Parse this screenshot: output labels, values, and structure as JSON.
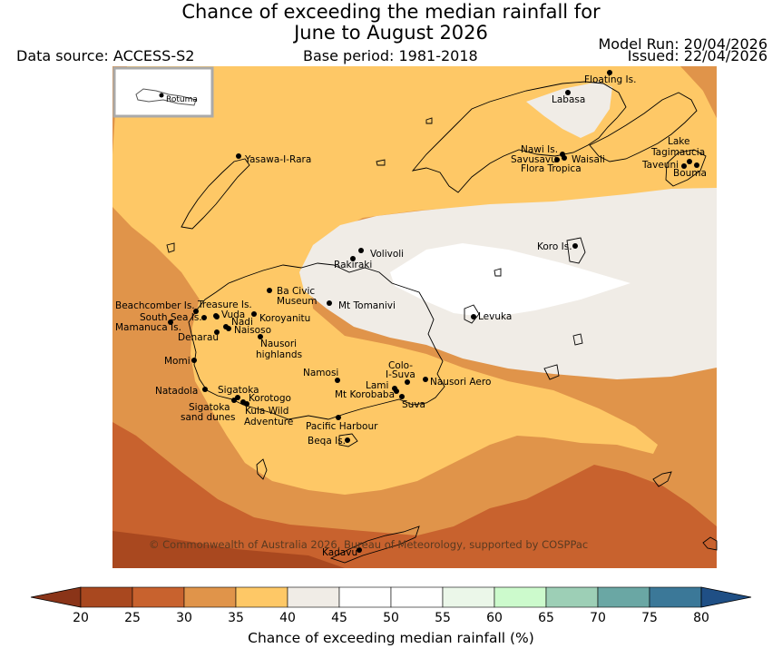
{
  "title": {
    "line1": "Chance of exceeding the median rainfall for",
    "line2": "June to August 2026"
  },
  "header": {
    "data_source": "Data source: ACCESS-S2",
    "base_period": "Base period: 1981-2018",
    "model_run": "Model Run: 20/04/2026",
    "issued": "Issued: 22/04/2026"
  },
  "inset": {
    "label": "Rotuma"
  },
  "places": [
    {
      "name": "Floating Is."
    },
    {
      "name": "Labasa"
    },
    {
      "name": "Yasawa-I-Rara"
    },
    {
      "name": "Nawi Is."
    },
    {
      "name": "Savusavu"
    },
    {
      "name": "Waisali"
    },
    {
      "name": "Flora Tropica"
    },
    {
      "name": "Lake"
    },
    {
      "name": "Tagimaucia"
    },
    {
      "name": "Taveuni"
    },
    {
      "name": "Bouma"
    },
    {
      "name": "Koro Is."
    },
    {
      "name": "Volivoli"
    },
    {
      "name": "Rakiraki"
    },
    {
      "name": "Ba Civic"
    },
    {
      "name": "Museum"
    },
    {
      "name": "Mt Tomanivi"
    },
    {
      "name": "Beachcomber Is."
    },
    {
      "name": "Treasure Is."
    },
    {
      "name": "South Sea Is."
    },
    {
      "name": "Vuda"
    },
    {
      "name": "Koroyanitu"
    },
    {
      "name": "Nadi"
    },
    {
      "name": "Mamanuca Is."
    },
    {
      "name": "Naisoso"
    },
    {
      "name": "Denarau"
    },
    {
      "name": "Nausori"
    },
    {
      "name": "highlands"
    },
    {
      "name": "Levuka"
    },
    {
      "name": "Momi"
    },
    {
      "name": "Namosi"
    },
    {
      "name": "Colo-"
    },
    {
      "name": "I-Suva"
    },
    {
      "name": "Lami"
    },
    {
      "name": "Nausori Aero"
    },
    {
      "name": "Natadola"
    },
    {
      "name": "Sigatoka"
    },
    {
      "name": "Mt Korobaba"
    },
    {
      "name": "Korotogo"
    },
    {
      "name": "Suva"
    },
    {
      "name": "Sigatoka"
    },
    {
      "name": "sand dunes"
    },
    {
      "name": "Kula Wild"
    },
    {
      "name": "Adventure"
    },
    {
      "name": "Pacific Harbour"
    },
    {
      "name": "Beqa Is."
    },
    {
      "name": "Kadavu"
    }
  ],
  "copyright": "© Commonwealth of Australia 2026, Bureau of Meteorology, supported by COSPPac",
  "colorbar": {
    "label": "Chance of exceeding median rainfall (%)",
    "ticks": [
      "20",
      "25",
      "30",
      "35",
      "40",
      "45",
      "50",
      "55",
      "60",
      "65",
      "70",
      "75",
      "80"
    ],
    "colors": [
      "#a9481f",
      "#c8622e",
      "#e0944a",
      "#fec866",
      "#f0ece6",
      "#ffffff",
      "#ffffff",
      "#ebf7e9",
      "#ccfacc",
      "#9dcfb6",
      "#6aa7a4",
      "#3b7898"
    ],
    "under_color": "#8a3418",
    "over_color": "#1f4f85"
  },
  "map_colors": {
    "c20_25": "#a9481f",
    "c25_30": "#c8622e",
    "c30_35": "#e0944a",
    "c35_40": "#fec866",
    "c40_45": "#f0ece6",
    "c45_55": "#ffffff"
  }
}
